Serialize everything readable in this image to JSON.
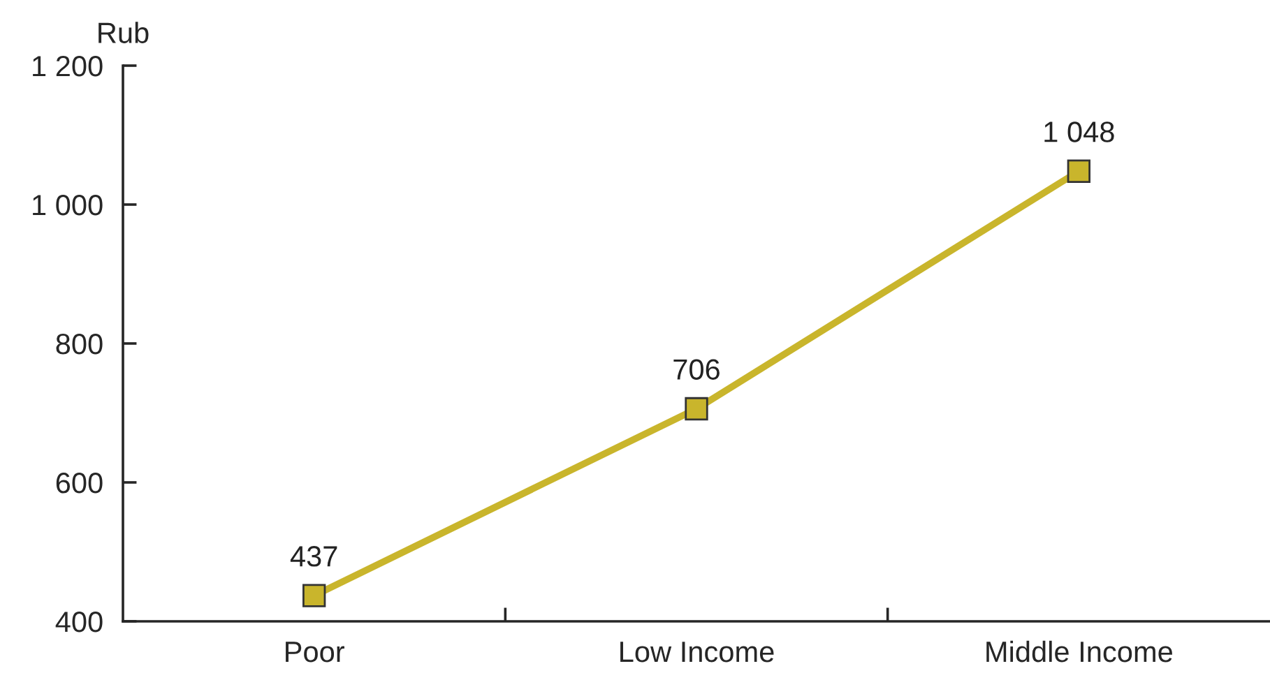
{
  "chart_data": {
    "type": "line",
    "ylabel": "Rub",
    "categories": [
      "Poor",
      "Low Income",
      "Middle Income"
    ],
    "series": [
      {
        "color": "#c9b52c",
        "values": [
          437,
          706,
          1048
        ],
        "value_labels": [
          "437",
          "706",
          "1 048"
        ]
      }
    ],
    "ylim": [
      400,
      1200
    ],
    "yticks": [
      400,
      600,
      800,
      {
        "value": 1000,
        "label": "1 000"
      },
      {
        "value": 1200,
        "label": "1 200"
      }
    ],
    "marker": "square",
    "line_style": "solid",
    "grid": false,
    "legend": false
  }
}
